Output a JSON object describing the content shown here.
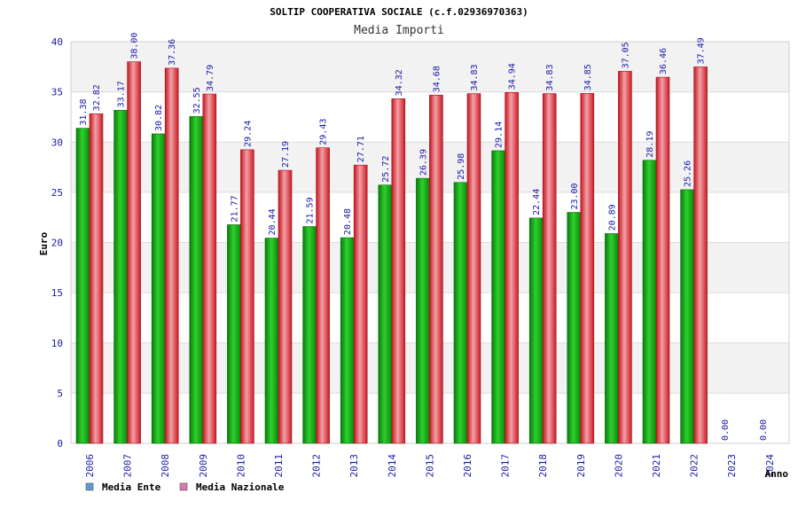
{
  "chart_data": {
    "type": "bar",
    "title": "SOLTIP COOPERATIVA SOCIALE (c.f.02936970363)",
    "subtitle": "Media Importi",
    "xlabel": "Anno",
    "ylabel": "Euro",
    "ylim": [
      0,
      40
    ],
    "yticks": [
      0,
      5,
      10,
      15,
      20,
      25,
      30,
      35,
      40
    ],
    "categories": [
      "2006",
      "2007",
      "2008",
      "2009",
      "2010",
      "2011",
      "2012",
      "2013",
      "2014",
      "2015",
      "2016",
      "2017",
      "2018",
      "2019",
      "2020",
      "2021",
      "2022",
      "2023",
      "2024"
    ],
    "series": [
      {
        "name": "Media Ente",
        "color": "#22b022",
        "values": [
          31.38,
          33.17,
          30.82,
          32.55,
          21.77,
          20.44,
          21.59,
          20.48,
          25.72,
          26.39,
          25.98,
          29.14,
          22.44,
          23.0,
          20.89,
          28.19,
          25.26,
          0.0,
          0.0
        ],
        "labels": [
          "31.38",
          "33.17",
          "30.82",
          "32.55",
          "21.77",
          "20.44",
          "21.59",
          "20.48",
          "25.72",
          "26.39",
          "25.98",
          "29.14",
          "22.44",
          "23.00",
          "20.89",
          "28.19",
          "25.26",
          "0.00",
          "0.00"
        ]
      },
      {
        "name": "Media Nazionale",
        "color": "#e8303a",
        "values": [
          32.82,
          38.0,
          37.36,
          34.79,
          29.24,
          27.19,
          29.43,
          27.71,
          34.32,
          34.68,
          34.83,
          34.94,
          34.83,
          34.85,
          37.05,
          36.46,
          37.49,
          null,
          null
        ],
        "labels": [
          "32.82",
          "38.00",
          "37.36",
          "34.79",
          "29.24",
          "27.19",
          "29.43",
          "27.71",
          "34.32",
          "34.68",
          "34.83",
          "34.94",
          "34.83",
          "34.85",
          "37.05",
          "36.46",
          "37.49",
          "",
          ""
        ]
      }
    ],
    "legend": [
      {
        "label": "Media Ente",
        "color": "#5b9bd5"
      },
      {
        "label": "Media Nazionale",
        "color": "#d67ab0"
      }
    ],
    "grid": true
  }
}
